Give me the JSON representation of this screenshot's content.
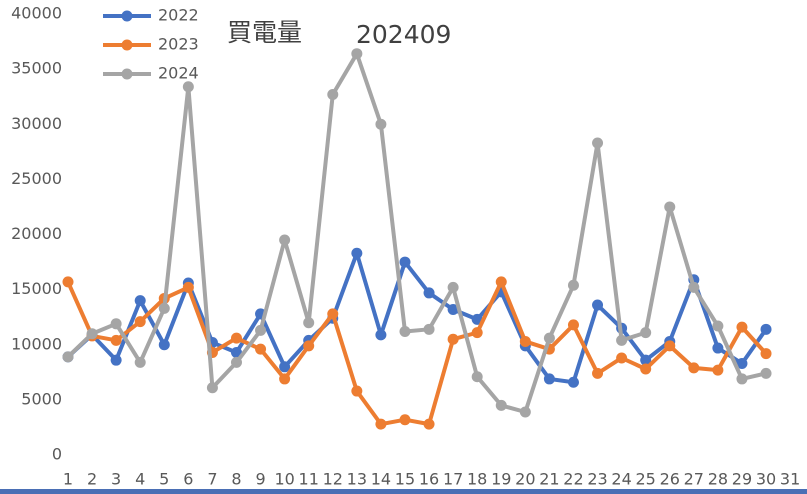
{
  "chart_data": {
    "type": "line",
    "title": "買電量",
    "subtitle": "202409",
    "categories": [
      "1",
      "2",
      "3",
      "4",
      "5",
      "6",
      "7",
      "8",
      "9",
      "10",
      "11",
      "12",
      "13",
      "14",
      "15",
      "16",
      "17",
      "18",
      "19",
      "20",
      "21",
      "22",
      "23",
      "24",
      "25",
      "26",
      "27",
      "28",
      "29",
      "30",
      "31"
    ],
    "series": [
      {
        "name": "2022",
        "color": "#4472c4",
        "values": [
          8900,
          10900,
          8600,
          14000,
          10000,
          15600,
          10200,
          9300,
          12800,
          8000,
          10400,
          12400,
          18300,
          10900,
          17500,
          14700,
          13200,
          12300,
          14800,
          9900,
          6900,
          6600,
          13600,
          11500,
          8600,
          10300,
          15900,
          9700,
          8300,
          11400,
          null
        ]
      },
      {
        "name": "2023",
        "color": "#ed7d31",
        "values": [
          15700,
          10800,
          10400,
          12100,
          14200,
          15200,
          9300,
          10600,
          9600,
          6900,
          9900,
          12800,
          5800,
          2800,
          3200,
          2800,
          10500,
          11100,
          15700,
          10300,
          9600,
          11800,
          7400,
          8800,
          7800,
          9900,
          7900,
          7700,
          11600,
          9200,
          null
        ]
      },
      {
        "name": "2024",
        "color": "#a5a5a5",
        "values": [
          8900,
          11000,
          11900,
          8400,
          13300,
          33400,
          6100,
          8400,
          11300,
          19500,
          12000,
          32700,
          36400,
          30000,
          11200,
          11400,
          15200,
          7100,
          4500,
          3900,
          10600,
          15400,
          28300,
          10400,
          11100,
          22500,
          15200,
          11700,
          6900,
          7400,
          null
        ]
      }
    ],
    "ylim": [
      0,
      40000
    ],
    "yticks": [
      0,
      5000,
      10000,
      15000,
      20000,
      25000,
      30000,
      35000,
      40000
    ],
    "grid": false,
    "legend": "top-left"
  }
}
